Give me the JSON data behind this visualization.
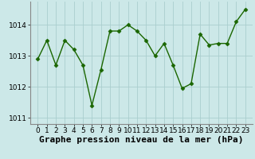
{
  "x": [
    0,
    1,
    2,
    3,
    4,
    5,
    6,
    7,
    8,
    9,
    10,
    11,
    12,
    13,
    14,
    15,
    16,
    17,
    18,
    19,
    20,
    21,
    22,
    23
  ],
  "y": [
    1012.9,
    1013.5,
    1012.7,
    1013.5,
    1013.2,
    1012.7,
    1011.4,
    1012.55,
    1013.8,
    1013.8,
    1014.0,
    1013.8,
    1013.5,
    1013.0,
    1013.4,
    1012.7,
    1011.95,
    1012.1,
    1013.7,
    1013.35,
    1013.4,
    1013.4,
    1014.1,
    1014.5
  ],
  "line_color": "#1a6600",
  "marker": "D",
  "marker_size": 2.5,
  "bg_color": "#cce8e8",
  "grid_color": "#aacece",
  "xlabel": "Graphe pression niveau de la mer (hPa)",
  "xlabel_fontsize": 8,
  "tick_fontsize": 6.5,
  "ylim": [
    1010.8,
    1014.75
  ],
  "yticks": [
    1011,
    1012,
    1013,
    1014
  ],
  "xticks": [
    0,
    1,
    2,
    3,
    4,
    5,
    6,
    7,
    8,
    9,
    10,
    11,
    12,
    13,
    14,
    15,
    16,
    17,
    18,
    19,
    20,
    21,
    22,
    23
  ],
  "spine_color": "#888888",
  "fig_width": 3.2,
  "fig_height": 2.0,
  "dpi": 100
}
